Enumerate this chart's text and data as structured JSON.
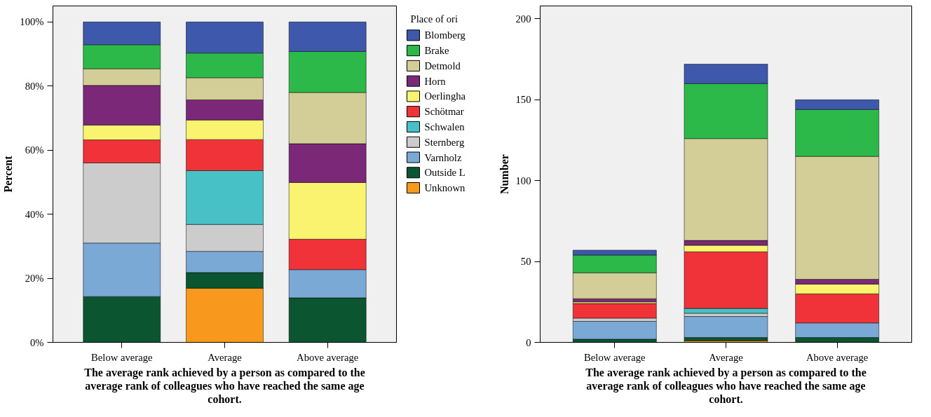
{
  "chart_data": [
    {
      "type": "bar",
      "stacked": true,
      "categories": [
        "Below average",
        "Average",
        "Above average"
      ],
      "xlabel": "The average rank achieved by a person as compared to the average rank of colleagues who have reached the same age cohort.",
      "ylabel": "Percent",
      "ylim": [
        0,
        105
      ],
      "yticks": [
        {
          "value": 0,
          "label": "0%"
        },
        {
          "value": 20,
          "label": "20%"
        },
        {
          "value": 40,
          "label": "40%"
        },
        {
          "value": 60,
          "label": "60%"
        },
        {
          "value": 80,
          "label": "80%"
        },
        {
          "value": 100,
          "label": "100%"
        }
      ],
      "grid": false,
      "legend": "right",
      "legend_title": "Place of ori",
      "series": [
        {
          "name": "Unknown",
          "color": "#f8981d",
          "values": [
            0,
            16.9,
            0
          ]
        },
        {
          "name": "Outside L",
          "color": "#0b5530",
          "values": [
            14.3,
            4.9,
            13.9
          ]
        },
        {
          "name": "Varnholz",
          "color": "#7ba9d6",
          "values": [
            16.7,
            6.6,
            8.8
          ]
        },
        {
          "name": "Sternberg",
          "color": "#cccccc",
          "values": [
            25.0,
            8.4,
            0
          ]
        },
        {
          "name": "Schwalen",
          "color": "#48c1c6",
          "values": [
            0,
            16.8,
            0
          ]
        },
        {
          "name": "Schötmar",
          "color": "#ef3338",
          "values": [
            7.2,
            9.7,
            9.5
          ]
        },
        {
          "name": "Oerlingha",
          "color": "#f9f370",
          "values": [
            4.6,
            6.1,
            17.7
          ]
        },
        {
          "name": "Horn",
          "color": "#7b2879",
          "values": [
            12.4,
            6.3,
            12.1
          ]
        },
        {
          "name": "Detmold",
          "color": "#d3ce97",
          "values": [
            5.2,
            6.9,
            16.0
          ]
        },
        {
          "name": "Brake",
          "color": "#2db84a",
          "values": [
            7.5,
            7.7,
            12.8
          ]
        },
        {
          "name": "Blomberg",
          "color": "#3e58ac",
          "values": [
            7.1,
            9.7,
            9.2
          ]
        }
      ]
    },
    {
      "type": "bar",
      "stacked": true,
      "categories": [
        "Below average",
        "Average",
        "Above average"
      ],
      "xlabel": "The average rank achieved by a person as compared to the average rank of colleagues who have reached the same age cohort.",
      "ylabel": "Number",
      "ylim": [
        0,
        208
      ],
      "yticks": [
        0,
        50,
        100,
        150,
        200
      ],
      "grid": false,
      "series": [
        {
          "color": "#f8981d",
          "values": [
            0,
            1,
            0
          ]
        },
        {
          "color": "#0b5530",
          "values": [
            2,
            2,
            3
          ]
        },
        {
          "color": "#7ba9d6",
          "values": [
            11,
            13,
            9
          ]
        },
        {
          "color": "#cccccc",
          "values": [
            2,
            2,
            0
          ]
        },
        {
          "color": "#48c1c6",
          "values": [
            0,
            3,
            0
          ]
        },
        {
          "color": "#ef3338",
          "values": [
            9,
            35,
            18
          ]
        },
        {
          "color": "#f9f370",
          "values": [
            1,
            4,
            6
          ]
        },
        {
          "color": "#7b2879",
          "values": [
            2,
            3,
            3
          ]
        },
        {
          "color": "#d3ce97",
          "values": [
            16,
            63,
            76
          ]
        },
        {
          "color": "#2db84a",
          "values": [
            11,
            34,
            29
          ]
        },
        {
          "color": "#3e58ac",
          "values": [
            3,
            12,
            6
          ]
        }
      ]
    }
  ]
}
